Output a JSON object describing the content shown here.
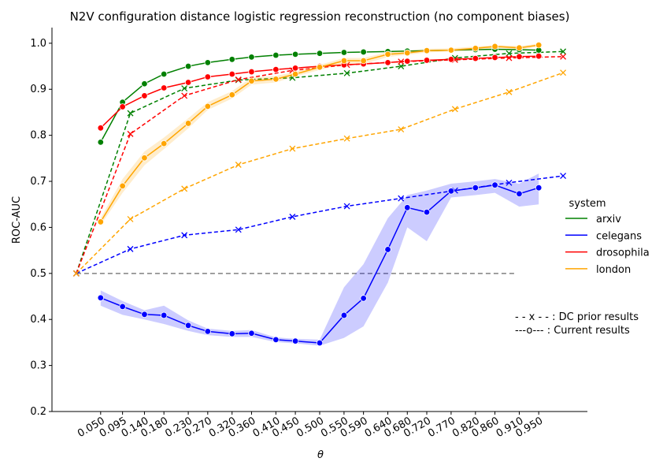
{
  "chart_data": {
    "type": "line",
    "title": "N2V configuration distance logistic regression reconstruction (no component biases)",
    "xlabel": "θ",
    "ylabel": "ROC-AUC",
    "xlim": [
      -0.05,
      1.05
    ],
    "ylim": [
      0.2,
      1.034
    ],
    "xticks": [
      {
        "value": 0.05,
        "label": "0.050"
      },
      {
        "value": 0.095,
        "label": "0.095"
      },
      {
        "value": 0.14,
        "label": "0.140"
      },
      {
        "value": 0.18,
        "label": "0.180"
      },
      {
        "value": 0.23,
        "label": "0.230"
      },
      {
        "value": 0.27,
        "label": "0.270"
      },
      {
        "value": 0.32,
        "label": "0.320"
      },
      {
        "value": 0.36,
        "label": "0.360"
      },
      {
        "value": 0.41,
        "label": "0.410"
      },
      {
        "value": 0.45,
        "label": "0.450"
      },
      {
        "value": 0.5,
        "label": "0.500"
      },
      {
        "value": 0.55,
        "label": "0.550"
      },
      {
        "value": 0.59,
        "label": "0.590"
      },
      {
        "value": 0.64,
        "label": "0.640"
      },
      {
        "value": 0.68,
        "label": "0.680"
      },
      {
        "value": 0.72,
        "label": "0.720"
      },
      {
        "value": 0.77,
        "label": "0.770"
      },
      {
        "value": 0.82,
        "label": "0.820"
      },
      {
        "value": 0.86,
        "label": "0.860"
      },
      {
        "value": 0.91,
        "label": "0.910"
      },
      {
        "value": 0.95,
        "label": "0.950"
      }
    ],
    "yticks": [
      {
        "value": 0.2,
        "label": "0.2"
      },
      {
        "value": 0.3,
        "label": "0.3"
      },
      {
        "value": 0.4,
        "label": "0.4"
      },
      {
        "value": 0.5,
        "label": "0.5"
      },
      {
        "value": 0.6,
        "label": "0.6"
      },
      {
        "value": 0.7,
        "label": "0.7"
      },
      {
        "value": 0.8,
        "label": "0.8"
      },
      {
        "value": 0.9,
        "label": "0.9"
      },
      {
        "value": 1.0,
        "label": "1.0"
      }
    ],
    "x": [
      0.05,
      0.095,
      0.14,
      0.18,
      0.23,
      0.27,
      0.32,
      0.36,
      0.41,
      0.45,
      0.5,
      0.55,
      0.59,
      0.64,
      0.68,
      0.72,
      0.77,
      0.82,
      0.86,
      0.91,
      0.95
    ],
    "prior_x": [
      0,
      0.111,
      0.222,
      0.333,
      0.444,
      0.556,
      0.667,
      0.778,
      0.889,
      1.0
    ],
    "legend_title": "system",
    "series": [
      {
        "name": "arxiv",
        "color": "#008000",
        "values": [
          0.785,
          0.872,
          0.912,
          0.933,
          0.95,
          0.958,
          0.965,
          0.97,
          0.974,
          0.976,
          0.978,
          0.98,
          0.981,
          0.982,
          0.983,
          0.984,
          0.985,
          0.986,
          0.987,
          0.986,
          0.985
        ],
        "prior_values": [
          0.5,
          0.848,
          0.902,
          0.92,
          0.925,
          0.935,
          0.95,
          0.968,
          0.978,
          0.982
        ]
      },
      {
        "name": "celegans",
        "color": "#0000ff",
        "values": [
          0.447,
          0.428,
          0.411,
          0.409,
          0.387,
          0.374,
          0.369,
          0.37,
          0.356,
          0.353,
          0.349,
          0.409,
          0.446,
          0.552,
          0.643,
          0.633,
          0.679,
          0.686,
          0.692,
          0.673,
          0.686
        ],
        "lower": [
          0.43,
          0.41,
          0.4,
          0.39,
          0.375,
          0.366,
          0.362,
          0.362,
          0.351,
          0.348,
          0.343,
          0.36,
          0.385,
          0.48,
          0.6,
          0.57,
          0.665,
          0.67,
          0.675,
          0.645,
          0.65
        ],
        "upper": [
          0.463,
          0.44,
          0.42,
          0.43,
          0.398,
          0.38,
          0.375,
          0.377,
          0.361,
          0.358,
          0.356,
          0.47,
          0.52,
          0.62,
          0.67,
          0.68,
          0.695,
          0.7,
          0.705,
          0.695,
          0.717
        ],
        "prior_values": [
          0.5,
          0.553,
          0.583,
          0.595,
          0.623,
          0.646,
          0.663,
          0.68,
          0.697,
          0.712
        ]
      },
      {
        "name": "drosophila",
        "color": "#ff0000",
        "values": [
          0.816,
          0.862,
          0.886,
          0.903,
          0.915,
          0.927,
          0.933,
          0.938,
          0.943,
          0.946,
          0.95,
          0.953,
          0.955,
          0.958,
          0.961,
          0.963,
          0.965,
          0.967,
          0.969,
          0.971,
          0.972
        ],
        "prior_values": [
          0.5,
          0.803,
          0.886,
          0.921,
          0.941,
          0.953,
          0.96,
          0.964,
          0.968,
          0.971
        ]
      },
      {
        "name": "london",
        "color": "#ffa500",
        "values": [
          0.612,
          0.69,
          0.751,
          0.782,
          0.826,
          0.863,
          0.888,
          0.918,
          0.922,
          0.933,
          0.948,
          0.962,
          0.962,
          0.976,
          0.979,
          0.984,
          0.985,
          0.989,
          0.993,
          0.99,
          0.996
        ],
        "lower": [
          0.605,
          0.675,
          0.735,
          0.77,
          0.815,
          0.855,
          0.88,
          0.91,
          0.915,
          0.928,
          0.942,
          0.955,
          0.955,
          0.97,
          0.975,
          0.98,
          0.982,
          0.985,
          0.99,
          0.986,
          0.993
        ],
        "upper": [
          0.62,
          0.705,
          0.765,
          0.795,
          0.837,
          0.872,
          0.896,
          0.926,
          0.929,
          0.938,
          0.953,
          0.968,
          0.968,
          0.981,
          0.983,
          0.988,
          0.989,
          0.993,
          0.996,
          0.994,
          0.999
        ],
        "prior_values": [
          0.5,
          0.618,
          0.684,
          0.736,
          0.771,
          0.793,
          0.813,
          0.857,
          0.894,
          0.936
        ]
      }
    ],
    "baseline": {
      "y": 0.5,
      "x": [
        0,
        0.9
      ],
      "color": "#808080"
    },
    "annotations": [
      "- - x - - : DC prior results",
      "---o--- : Current results"
    ]
  }
}
